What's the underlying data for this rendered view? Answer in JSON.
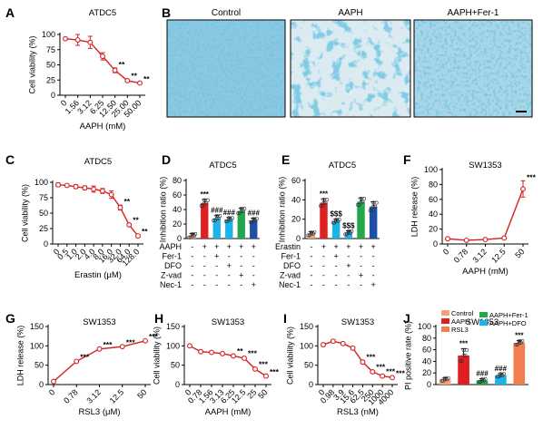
{
  "colors": {
    "line": "#d42020",
    "text": "#000000",
    "cyan": "#1ab4e8",
    "darkblue": "#1e4fa8",
    "green": "#22a84a",
    "red": "#e02020",
    "salmon": "#f4a07a",
    "orange": "#f07e50",
    "micro_bg": "#8ec8e2",
    "micro_fg": "#2e8fbf"
  },
  "micro": {
    "letter": "B",
    "titles": [
      "Control",
      "AAPH",
      "AAPH+Fer-1"
    ]
  },
  "chart_data": [
    {
      "id": "A",
      "letter": "A",
      "type": "line",
      "title": "ATDC5",
      "xlabel": "AAPH  (mM)",
      "ylabel": "Cell viability (%)",
      "categories": [
        "0",
        "1.56",
        "3.12",
        "6.25",
        "12.50",
        "25.00",
        "50.00"
      ],
      "values": [
        93,
        91,
        87,
        64,
        41,
        24,
        20
      ],
      "errors": [
        2,
        9,
        10,
        6,
        4,
        2,
        1
      ],
      "sig": [
        "",
        "",
        "",
        "",
        "**",
        "**",
        "**"
      ],
      "ylim": [
        0,
        100
      ],
      "yticks": [
        "0",
        "25",
        "50",
        "75",
        "100"
      ]
    },
    {
      "id": "C",
      "letter": "C",
      "type": "line",
      "title": "ATDC5",
      "xlabel": "Erastin (μM)",
      "ylabel": "Cell viability (%)",
      "categories": [
        "0",
        "0.5",
        "1.0",
        "2.0",
        "4.0",
        "8.0",
        "16.0",
        "32.0",
        "64.0",
        "128.0"
      ],
      "values": [
        96,
        95,
        93,
        91,
        89,
        86,
        80,
        59,
        31,
        13
      ],
      "errors": [
        3,
        2,
        3,
        3,
        5,
        4,
        6,
        4,
        2,
        2
      ],
      "sig": [
        "",
        "",
        "",
        "",
        "",
        "",
        "",
        "**",
        "**",
        "**"
      ],
      "ylim": [
        0,
        100
      ],
      "yticks": [
        "0",
        "25",
        "50",
        "75",
        "100"
      ]
    },
    {
      "id": "D",
      "letter": "D",
      "type": "bar",
      "title": "ATDC5",
      "ylabel": "Inhibition ratio (%)",
      "values": [
        4,
        49,
        28,
        26,
        38,
        25
      ],
      "errors": [
        3,
        5,
        4,
        3,
        4,
        3
      ],
      "colors": [
        "#f4a07a",
        "#e02020",
        "#1ab4e8",
        "#1ab4e8",
        "#22a84a",
        "#1e4fa8"
      ],
      "sig": [
        "",
        "***",
        "###",
        "###",
        "",
        "###"
      ],
      "ylim": [
        0,
        80
      ],
      "yticks": [
        "0",
        "20",
        "40",
        "60",
        "80"
      ],
      "treatments": [
        {
          "name": "AAPH",
          "signs": [
            "-",
            "+",
            "+",
            "+",
            "+",
            "+"
          ]
        },
        {
          "name": "Fer-1",
          "signs": [
            "-",
            "-",
            "+",
            "-",
            "-",
            "-"
          ]
        },
        {
          "name": "DFO",
          "signs": [
            "-",
            "-",
            "-",
            "+",
            "-",
            "-"
          ]
        },
        {
          "name": "Z-vad",
          "signs": [
            "-",
            "-",
            "-",
            "-",
            "+",
            "-"
          ]
        },
        {
          "name": "Nec-1",
          "signs": [
            "-",
            "-",
            "-",
            "-",
            "-",
            "+"
          ]
        }
      ]
    },
    {
      "id": "E",
      "letter": "E",
      "type": "bar",
      "title": "ATDC5",
      "ylabel": "Inhibition ratio (%)",
      "values": [
        5,
        37,
        18,
        6,
        38,
        33
      ],
      "errors": [
        2,
        4,
        2,
        2,
        4,
        5
      ],
      "colors": [
        "#f4a07a",
        "#e02020",
        "#1ab4e8",
        "#1ab4e8",
        "#22a84a",
        "#1e4fa8"
      ],
      "sig": [
        "",
        "***",
        "$$$",
        "$$$",
        "",
        ""
      ],
      "ylim": [
        0,
        60
      ],
      "yticks": [
        "0",
        "20",
        "40",
        "60"
      ],
      "treatments": [
        {
          "name": "Erastin",
          "signs": [
            "-",
            "+",
            "+",
            "+",
            "+",
            "+"
          ]
        },
        {
          "name": "Fer-1",
          "signs": [
            "-",
            "-",
            "+",
            "-",
            "-",
            "-"
          ]
        },
        {
          "name": "DFO",
          "signs": [
            "-",
            "-",
            "-",
            "+",
            "-",
            "-"
          ]
        },
        {
          "name": "Z-vad",
          "signs": [
            "-",
            "-",
            "-",
            "-",
            "+",
            "-"
          ]
        },
        {
          "name": "Nec-1",
          "signs": [
            "-",
            "-",
            "-",
            "-",
            "-",
            "+"
          ]
        }
      ]
    },
    {
      "id": "F",
      "letter": "F",
      "type": "line",
      "title": "SW1353",
      "xlabel": "AAPH (mM)",
      "ylabel": "LDH release (%)",
      "categories": [
        "0",
        "0.78",
        "3.12",
        "12.5",
        "50"
      ],
      "values": [
        7,
        5,
        6,
        8,
        74
      ],
      "errors": [
        1,
        1,
        1,
        1,
        11
      ],
      "sig": [
        "",
        "",
        "",
        "",
        "***"
      ],
      "ylim": [
        0,
        100
      ],
      "yticks": [
        "0",
        "20",
        "40",
        "60",
        "80",
        "100"
      ]
    },
    {
      "id": "G",
      "letter": "G",
      "type": "line",
      "title": "SW1353",
      "xlabel": "RSL3 (μM)",
      "ylabel": "LDH release (%)",
      "categories": [
        "0",
        "0.78",
        "3.12",
        "12.5",
        "50"
      ],
      "values": [
        8,
        60,
        92,
        98,
        113
      ],
      "errors": [
        1,
        2,
        2,
        2,
        2
      ],
      "sig": [
        "",
        "***",
        "***",
        "***",
        "***"
      ],
      "ylim": [
        0,
        150
      ],
      "yticks": [
        "0",
        "50",
        "100",
        "150"
      ]
    },
    {
      "id": "H",
      "letter": "H",
      "type": "line",
      "title": "SW1353",
      "xlabel": "AAPH (mM)",
      "ylabel": "Cell viability (%)",
      "categories": [
        "0",
        "0.78",
        "1.56",
        "3.13",
        "6.25",
        "12.5",
        "25",
        "50"
      ],
      "values": [
        100,
        85,
        83,
        80,
        74,
        68,
        40,
        22
      ],
      "errors": [
        2,
        3,
        2,
        3,
        3,
        3,
        3,
        2
      ],
      "sig": [
        "",
        "",
        "",
        "",
        "**",
        "***",
        "***",
        "***"
      ],
      "ylim": [
        0,
        150
      ],
      "yticks": [
        "0",
        "50",
        "100",
        "150"
      ]
    },
    {
      "id": "I",
      "letter": "I",
      "type": "line",
      "title": "SW1353",
      "xlabel": "RSL3 (nM)",
      "ylabel": "Cell viability (%)",
      "categories": [
        "0",
        "0.98",
        "3.9",
        "15.6",
        "62.5",
        "250",
        "1000",
        "4000"
      ],
      "values": [
        103,
        112,
        106,
        94,
        58,
        33,
        22,
        18
      ],
      "errors": [
        4,
        4,
        3,
        4,
        4,
        3,
        3,
        2
      ],
      "sig": [
        "",
        "",
        "",
        "",
        "***",
        "***",
        "***",
        "***"
      ],
      "ylim": [
        0,
        150
      ],
      "yticks": [
        "0",
        "50",
        "100",
        "150"
      ]
    },
    {
      "id": "J",
      "letter": "J",
      "type": "bar",
      "title": "SW1353",
      "ylabel": "PI positive rate (%)",
      "categories": [
        "Control",
        "AAPH",
        "AAPH+Fer-1",
        "AAPH+DFO",
        "RSL3"
      ],
      "values": [
        9,
        50,
        7,
        16,
        72
      ],
      "errors": [
        3,
        12,
        3,
        3,
        4
      ],
      "colors": [
        "#f4a07a",
        "#e02020",
        "#22a84a",
        "#1ab4e8",
        "#f07e50"
      ],
      "sig": [
        "",
        "***",
        "###",
        "###",
        "***"
      ],
      "ylim": [
        0,
        100
      ],
      "yticks": [
        "0",
        "20",
        "40",
        "60",
        "80",
        "100"
      ]
    }
  ]
}
